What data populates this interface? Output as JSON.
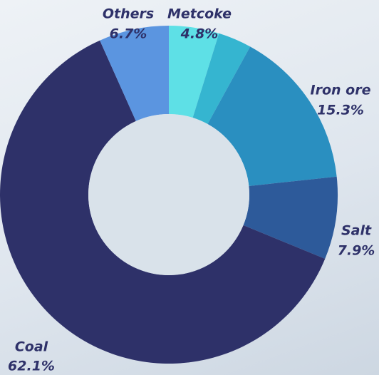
{
  "chart_data": {
    "type": "donut",
    "categories": [
      "Metcoke",
      null,
      "Iron ore",
      "Salt",
      "Coal",
      "Others"
    ],
    "values": [
      4.8,
      3.2,
      15.3,
      7.9,
      62.1,
      6.7
    ],
    "value_labels": [
      "4.8%",
      null,
      "15.3%",
      "7.9%",
      "62.1%",
      "6.7%"
    ],
    "colors": [
      "#5ee0e6",
      "#35b5d0",
      "#2a8fc0",
      "#2d5a9a",
      "#2e3169",
      "#5b95e0"
    ]
  }
}
